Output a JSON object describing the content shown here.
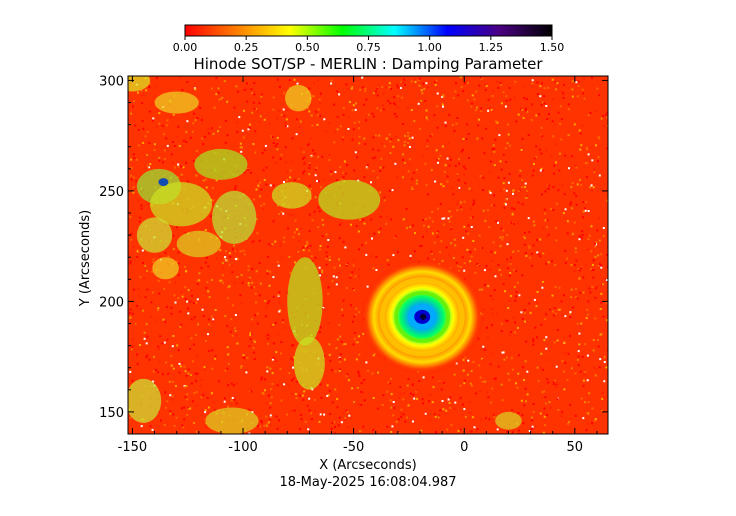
{
  "chart_data": {
    "type": "heatmap",
    "title": "Hinode SOT/SP - MERLIN : Damping Parameter",
    "xlabel": "X (Arcseconds)",
    "ylabel": "Y (Arcseconds)",
    "footer": "18-May-2025 16:08:04.987",
    "xlim": [
      -152,
      65
    ],
    "ylim": [
      140,
      302
    ],
    "xticks": [
      -150,
      -100,
      -50,
      0,
      50
    ],
    "yticks": [
      150,
      200,
      250,
      300
    ],
    "xtick_labels": [
      "-150",
      "-100",
      "-50",
      "0",
      "50"
    ],
    "ytick_labels": [
      "150",
      "200",
      "250",
      "300"
    ],
    "colorbar": {
      "range": [
        0.0,
        1.5
      ],
      "ticks": [
        0.0,
        0.25,
        0.5,
        0.75,
        1.0,
        1.25,
        1.5
      ],
      "tick_labels": [
        "0.00",
        "0.25",
        "0.50",
        "0.75",
        "1.00",
        "1.25",
        "1.50"
      ],
      "colors": [
        "#ff0000",
        "#ff8000",
        "#ffff00",
        "#00ff00",
        "#00ffff",
        "#0000ff",
        "#4b0082",
        "#000000"
      ]
    },
    "features": [
      {
        "type": "sunspot",
        "x": -19,
        "y": 193,
        "umbra_value": 1.35,
        "penumbra_value": 0.55
      }
    ]
  }
}
